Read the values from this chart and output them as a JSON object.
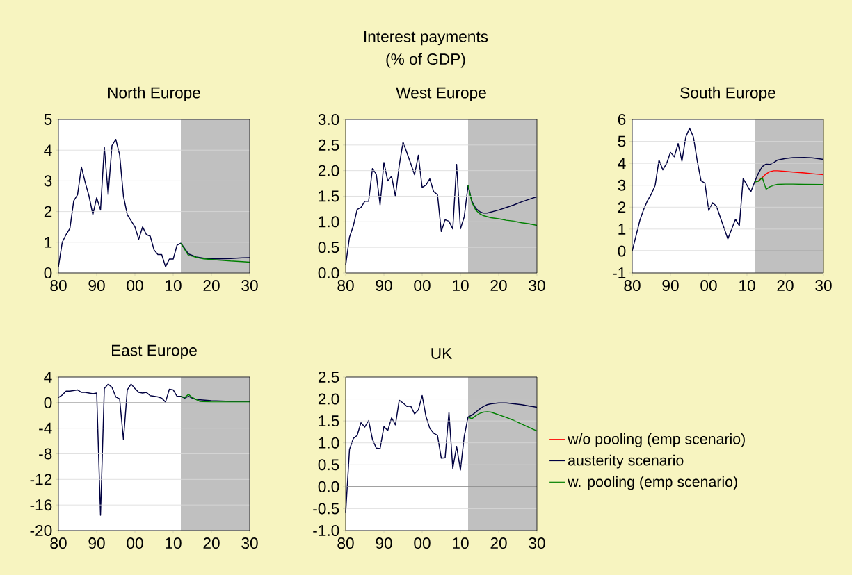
{
  "chart_data": [
    {
      "type": "line",
      "title": "North Europe",
      "annotations": [
        "Interest payments",
        "(% of GDP)"
      ],
      "xlim": [
        1980,
        2030
      ],
      "xticks": [
        {
          "value": 1980,
          "label": "80"
        },
        {
          "value": 1990,
          "label": "90"
        },
        {
          "value": 2000,
          "label": "00"
        },
        {
          "value": 2010,
          "label": "10"
        },
        {
          "value": 2020,
          "label": "20"
        },
        {
          "value": 2030,
          "label": "30"
        }
      ],
      "ylim": [
        0,
        5
      ],
      "yticks": [
        0,
        1,
        2,
        3,
        4,
        5
      ],
      "grid": "y",
      "bands": [
        {
          "axis": "x",
          "from": 2012,
          "to": 2030,
          "color": "#c0c0c0"
        }
      ],
      "series": [
        {
          "color": "#000040",
          "x": [
            1980,
            1981,
            1982,
            1983,
            1984,
            1985,
            1986,
            1987,
            1988,
            1989,
            1990,
            1991,
            1992,
            1993,
            1994,
            1995,
            1996,
            1997,
            1998,
            1999,
            2000,
            2001,
            2002,
            2003,
            2004,
            2005,
            2006,
            2007,
            2008,
            2009,
            2010,
            2011,
            2012,
            2013,
            2014,
            2015,
            2016,
            2018,
            2020,
            2022,
            2025,
            2028,
            2030
          ],
          "values": [
            0.2,
            1.0,
            1.25,
            1.45,
            2.35,
            2.55,
            3.45,
            2.95,
            2.5,
            1.9,
            2.45,
            2.05,
            4.1,
            2.55,
            4.15,
            4.35,
            3.85,
            2.5,
            1.9,
            1.7,
            1.5,
            1.1,
            1.5,
            1.25,
            1.2,
            0.75,
            0.6,
            0.6,
            0.2,
            0.45,
            0.45,
            0.9,
            0.97,
            0.8,
            0.62,
            0.57,
            0.52,
            0.48,
            0.46,
            0.46,
            0.47,
            0.49,
            0.5
          ]
        },
        {
          "color": "#008000",
          "x": [
            2012,
            2013,
            2014,
            2015,
            2016,
            2018,
            2020,
            2022,
            2025,
            2028,
            2030
          ],
          "values": [
            0.97,
            0.77,
            0.57,
            0.55,
            0.51,
            0.46,
            0.44,
            0.42,
            0.39,
            0.37,
            0.35
          ]
        }
      ]
    },
    {
      "type": "line",
      "title": "West Europe",
      "xlim": [
        1980,
        2030
      ],
      "xticks": [
        {
          "value": 1980,
          "label": "80"
        },
        {
          "value": 1990,
          "label": "90"
        },
        {
          "value": 2000,
          "label": "00"
        },
        {
          "value": 2010,
          "label": "10"
        },
        {
          "value": 2020,
          "label": "20"
        },
        {
          "value": 2030,
          "label": "30"
        }
      ],
      "ylim": [
        0,
        3
      ],
      "yticks": [
        {
          "value": 0,
          "label": "0.0"
        },
        0.5,
        {
          "value": 1,
          "label": "1.0"
        },
        1.5,
        {
          "value": 2,
          "label": "2.0"
        },
        2.5,
        {
          "value": 3,
          "label": "3.0"
        }
      ],
      "grid": "y",
      "bands": [
        {
          "axis": "x",
          "from": 2012,
          "to": 2030,
          "color": "#c0c0c0"
        }
      ],
      "series": [
        {
          "color": "#000040",
          "x": [
            1980,
            1981,
            1982,
            1983,
            1984,
            1985,
            1986,
            1987,
            1988,
            1989,
            1990,
            1991,
            1992,
            1993,
            1994,
            1995,
            1996,
            1997,
            1998,
            1999,
            2000,
            2001,
            2002,
            2003,
            2004,
            2005,
            2006,
            2007,
            2008,
            2009,
            2010,
            2011,
            2012,
            2013,
            2014,
            2015,
            2016,
            2017,
            2018,
            2020,
            2022,
            2024,
            2026,
            2028,
            2030
          ],
          "values": [
            0.15,
            0.7,
            0.92,
            1.24,
            1.28,
            1.4,
            1.4,
            2.04,
            1.93,
            1.33,
            2.16,
            1.8,
            1.89,
            1.5,
            2.1,
            2.56,
            2.35,
            2.14,
            1.92,
            2.3,
            1.67,
            1.72,
            1.84,
            1.59,
            1.53,
            0.81,
            1.04,
            1.01,
            0.86,
            2.12,
            0.86,
            1.1,
            1.71,
            1.4,
            1.26,
            1.2,
            1.17,
            1.17,
            1.19,
            1.23,
            1.28,
            1.33,
            1.39,
            1.44,
            1.49
          ]
        },
        {
          "color": "#008000",
          "x": [
            2012,
            2013,
            2014,
            2015,
            2016,
            2017,
            2018,
            2020,
            2022,
            2024,
            2026,
            2028,
            2030
          ],
          "values": [
            1.71,
            1.38,
            1.23,
            1.16,
            1.12,
            1.1,
            1.08,
            1.06,
            1.03,
            1.01,
            0.98,
            0.96,
            0.93
          ]
        }
      ]
    },
    {
      "type": "line",
      "title": "South Europe",
      "xlim": [
        1980,
        2030
      ],
      "xticks": [
        {
          "value": 1980,
          "label": "80"
        },
        {
          "value": 1990,
          "label": "90"
        },
        {
          "value": 2000,
          "label": "00"
        },
        {
          "value": 2010,
          "label": "10"
        },
        {
          "value": 2020,
          "label": "20"
        },
        {
          "value": 2030,
          "label": "30"
        }
      ],
      "ylim": [
        -1,
        6
      ],
      "yticks": [
        -1,
        0,
        1,
        2,
        3,
        4,
        5,
        6
      ],
      "grid": "y",
      "legend": "bottom",
      "bands": [
        {
          "axis": "x",
          "from": 2012,
          "to": 2030,
          "color": "#c0c0c0"
        }
      ],
      "ref_lines": [
        {
          "axis": "y",
          "value": 0,
          "color": "#000000"
        }
      ],
      "series": [
        {
          "name": "w/o pooling (emp scenario)",
          "color": "#ff0000",
          "x": [
            2012,
            2013,
            2014,
            2015,
            2016,
            2017,
            2018,
            2020,
            2022,
            2025,
            2028,
            2030
          ],
          "values": [
            3.15,
            3.2,
            3.35,
            3.52,
            3.62,
            3.66,
            3.66,
            3.63,
            3.6,
            3.56,
            3.51,
            3.48
          ]
        },
        {
          "name": "austerity scenario",
          "color": "#000040",
          "x": [
            1980,
            1981,
            1982,
            1983,
            1984,
            1985,
            1986,
            1987,
            1988,
            1989,
            1990,
            1991,
            1992,
            1993,
            1994,
            1995,
            1996,
            1997,
            1998,
            1999,
            2000,
            2001,
            2002,
            2003,
            2004,
            2005,
            2006,
            2007,
            2008,
            2009,
            2010,
            2011,
            2012,
            2013,
            2014,
            2015,
            2016,
            2017,
            2018,
            2020,
            2022,
            2025,
            2027,
            2030
          ],
          "values": [
            0,
            0.7,
            1.4,
            1.9,
            2.3,
            2.6,
            3.0,
            4.15,
            3.7,
            4.0,
            4.5,
            4.3,
            4.9,
            4.1,
            5.2,
            5.6,
            5.2,
            4.1,
            3.2,
            3.1,
            1.85,
            2.2,
            2.05,
            1.55,
            1.05,
            0.55,
            1.0,
            1.45,
            1.15,
            3.3,
            3.0,
            2.7,
            3.15,
            3.55,
            3.85,
            3.97,
            3.95,
            4.03,
            4.15,
            4.22,
            4.26,
            4.27,
            4.25,
            4.18
          ]
        },
        {
          "name": "w. pooling (emp scenario)",
          "color": "#008000",
          "x": [
            2012,
            2013,
            2014,
            2015,
            2016,
            2017,
            2018,
            2020,
            2022,
            2025,
            2030
          ],
          "values": [
            3.15,
            3.18,
            3.35,
            2.82,
            2.93,
            3.0,
            3.04,
            3.05,
            3.05,
            3.04,
            3.03
          ]
        }
      ]
    },
    {
      "type": "line",
      "title": "East Europe",
      "xlim": [
        1980,
        2030
      ],
      "xticks": [
        {
          "value": 1980,
          "label": "80"
        },
        {
          "value": 1990,
          "label": "90"
        },
        {
          "value": 2000,
          "label": "00"
        },
        {
          "value": 2010,
          "label": "10"
        },
        {
          "value": 2020,
          "label": "20"
        },
        {
          "value": 2030,
          "label": "30"
        }
      ],
      "ylim": [
        -20,
        4
      ],
      "yticks": [
        -20,
        -16,
        -12,
        -8,
        -4,
        0,
        4
      ],
      "grid": "y",
      "bands": [
        {
          "axis": "x",
          "from": 2012,
          "to": 2030,
          "color": "#c0c0c0"
        }
      ],
      "ref_lines": [
        {
          "axis": "y",
          "value": 0,
          "color": "#606060"
        }
      ],
      "series": [
        {
          "color": "#000040",
          "x": [
            1980,
            1981,
            1982,
            1983,
            1984,
            1985,
            1986,
            1987,
            1988,
            1989,
            1990,
            1991,
            1992,
            1993,
            1994,
            1995,
            1996,
            1997,
            1998,
            1999,
            2000,
            2001,
            2002,
            2003,
            2004,
            2005,
            2006,
            2007,
            2008,
            2009,
            2010,
            2011,
            2012,
            2013,
            2014,
            2015,
            2016,
            2018,
            2020,
            2025,
            2030
          ],
          "values": [
            0.8,
            1.2,
            1.8,
            1.8,
            1.9,
            2.0,
            1.6,
            1.6,
            1.5,
            1.4,
            1.5,
            -17.6,
            2.2,
            2.9,
            2.4,
            0.9,
            0.6,
            -5.8,
            2.0,
            2.9,
            2.2,
            1.6,
            1.5,
            1.6,
            1.1,
            1.0,
            0.9,
            0.7,
            0.1,
            2.1,
            2.0,
            1.0,
            1.0,
            0.7,
            1.0,
            0.7,
            0.5,
            0.4,
            0.3,
            0.2,
            0.2
          ]
        },
        {
          "color": "#008000",
          "x": [
            2012,
            2013,
            2014,
            2015,
            2016,
            2017,
            2020,
            2025,
            2030
          ],
          "values": [
            1.0,
            0.8,
            1.3,
            0.8,
            0.5,
            0.2,
            0.1,
            0.1,
            0.1
          ]
        }
      ]
    },
    {
      "type": "line",
      "title": "UK",
      "xlim": [
        1980,
        2030
      ],
      "xticks": [
        {
          "value": 1980,
          "label": "80"
        },
        {
          "value": 1990,
          "label": "90"
        },
        {
          "value": 2000,
          "label": "00"
        },
        {
          "value": 2010,
          "label": "10"
        },
        {
          "value": 2020,
          "label": "20"
        },
        {
          "value": 2030,
          "label": "30"
        }
      ],
      "ylim": [
        -1,
        2.5
      ],
      "yticks": [
        {
          "value": -1,
          "label": "-1.0"
        },
        -0.5,
        {
          "value": 0,
          "label": "0.0"
        },
        0.5,
        {
          "value": 1,
          "label": "1.0"
        },
        1.5,
        {
          "value": 2,
          "label": "2.0"
        },
        2.5
      ],
      "grid": "y",
      "bands": [
        {
          "axis": "x",
          "from": 2012,
          "to": 2030,
          "color": "#c0c0c0"
        }
      ],
      "ref_lines": [
        {
          "axis": "y",
          "value": 0,
          "color": "#000000"
        }
      ],
      "series": [
        {
          "color": "#000040",
          "x": [
            1980,
            1981,
            1982,
            1983,
            1984,
            1985,
            1986,
            1987,
            1988,
            1989,
            1990,
            1991,
            1992,
            1993,
            1994,
            1995,
            1996,
            1997,
            1998,
            1999,
            2000,
            2001,
            2002,
            2003,
            2004,
            2005,
            2006,
            2007,
            2008,
            2009,
            2010,
            2011,
            2012,
            2013,
            2014,
            2015,
            2016,
            2017,
            2018,
            2020,
            2022,
            2024,
            2026,
            2028,
            2030
          ],
          "values": [
            -0.6,
            0.85,
            1.1,
            1.17,
            1.46,
            1.36,
            1.51,
            1.08,
            0.88,
            0.87,
            1.37,
            1.28,
            1.57,
            1.41,
            1.97,
            1.91,
            1.83,
            1.84,
            1.66,
            1.75,
            2.08,
            1.6,
            1.33,
            1.22,
            1.17,
            0.65,
            0.66,
            1.7,
            0.42,
            0.92,
            0.38,
            1.15,
            1.59,
            1.63,
            1.7,
            1.77,
            1.83,
            1.87,
            1.89,
            1.91,
            1.91,
            1.89,
            1.87,
            1.84,
            1.81
          ]
        },
        {
          "color": "#008000",
          "x": [
            2012,
            2013,
            2014,
            2015,
            2016,
            2017,
            2018,
            2020,
            2022,
            2024,
            2026,
            2028,
            2030
          ],
          "values": [
            1.59,
            1.55,
            1.62,
            1.67,
            1.7,
            1.71,
            1.7,
            1.64,
            1.58,
            1.51,
            1.43,
            1.35,
            1.27
          ]
        }
      ]
    }
  ]
}
